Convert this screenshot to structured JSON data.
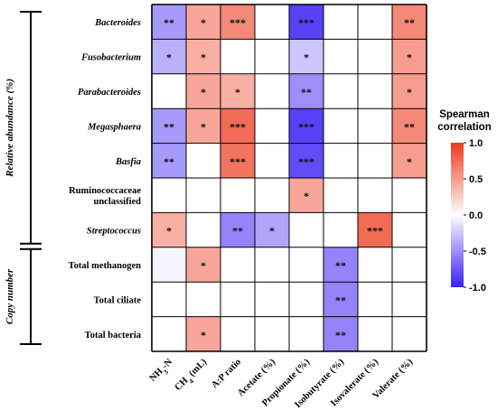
{
  "chart_data": {
    "type": "heatmap",
    "title": "",
    "rows": [
      {
        "label": "Bacteroides",
        "italic": true
      },
      {
        "label": "Fusobacterium",
        "italic": true
      },
      {
        "label": "Parabacteroides",
        "italic": true
      },
      {
        "label": "Megasphaera",
        "italic": true
      },
      {
        "label": "Basfia",
        "italic": true
      },
      {
        "label": "Ruminococcaceae unclassified",
        "label_lines": [
          "Ruminococcaceae",
          "unclassified"
        ],
        "italic": false
      },
      {
        "label": "Streptococcus",
        "italic": true
      },
      {
        "label": "Total methanogen",
        "italic": false
      },
      {
        "label": "Total ciliate",
        "italic": false
      },
      {
        "label": "Total bacteria",
        "italic": false
      }
    ],
    "columns": [
      {
        "label": "NH3-N",
        "main": "NH",
        "sub": "3",
        "tail": "-N"
      },
      {
        "label": "CH4 (mL)",
        "main": "CH",
        "sub": "4",
        "tail": " (mL)"
      },
      {
        "label": "A:P ratio",
        "main": "A:P ratio",
        "sub": "",
        "tail": ""
      },
      {
        "label": "Acetate (%)",
        "main": "Acetate (%)",
        "sub": "",
        "tail": ""
      },
      {
        "label": "Propionate (%)",
        "main": "Propionate (%)",
        "sub": "",
        "tail": ""
      },
      {
        "label": "Isobutyrate (%)",
        "main": "Isobutyrate (%)",
        "sub": "",
        "tail": ""
      },
      {
        "label": "Isovalerate (%)",
        "main": "Isovalerate (%)",
        "sub": "",
        "tail": ""
      },
      {
        "label": "Valerate (%)",
        "main": "Valerate (%)",
        "sub": "",
        "tail": ""
      }
    ],
    "values": [
      [
        -0.45,
        0.45,
        0.6,
        0,
        -0.85,
        0,
        0,
        0.6
      ],
      [
        -0.35,
        0.4,
        0,
        0,
        -0.25,
        0,
        0,
        0.5
      ],
      [
        0,
        0.45,
        0.4,
        0,
        -0.5,
        0,
        0,
        0.5
      ],
      [
        -0.45,
        0.45,
        0.75,
        0,
        -0.85,
        0,
        0,
        0.6
      ],
      [
        -0.45,
        0,
        0.7,
        0,
        -0.8,
        0,
        0,
        0.5
      ],
      [
        0,
        0,
        0,
        0,
        0.45,
        0,
        0,
        0
      ],
      [
        0.4,
        0,
        -0.55,
        -0.4,
        0,
        0,
        0.75,
        0
      ],
      [
        -0.05,
        0.45,
        0,
        0,
        0,
        -0.55,
        0,
        0
      ],
      [
        0,
        0,
        0,
        0,
        0,
        -0.55,
        0,
        0
      ],
      [
        0,
        0.45,
        0,
        0,
        0,
        -0.55,
        0,
        0
      ]
    ],
    "significance": [
      [
        "**",
        "*",
        "***",
        "",
        "***",
        "",
        "",
        "**"
      ],
      [
        "*",
        "*",
        "",
        "",
        "*",
        "",
        "",
        "*"
      ],
      [
        "",
        "*",
        "*",
        "",
        "**",
        "",
        "",
        "*"
      ],
      [
        "**",
        "*",
        "***",
        "",
        "***",
        "",
        "",
        "**"
      ],
      [
        "**",
        "",
        "***",
        "",
        "***",
        "",
        "",
        "*"
      ],
      [
        "",
        "",
        "",
        "",
        "*",
        "",
        "",
        ""
      ],
      [
        "*",
        "",
        "**",
        "*",
        "",
        "",
        "***",
        ""
      ],
      [
        "",
        "*",
        "",
        "",
        "",
        "**",
        "",
        ""
      ],
      [
        "",
        "",
        "",
        "",
        "",
        "**",
        "",
        ""
      ],
      [
        "",
        "*",
        "",
        "",
        "",
        "**",
        "",
        ""
      ]
    ],
    "row_groups": [
      {
        "label": "Relative abundance (%)",
        "row_start": 0,
        "row_end": 6
      },
      {
        "label": "Copy number",
        "row_start": 7,
        "row_end": 9
      }
    ],
    "legend": {
      "title_lines": [
        "Spearman",
        "correlation"
      ],
      "ticks": [
        1.0,
        0.5,
        0.0,
        -0.5,
        -1.0
      ],
      "tick_labels": [
        "1.0",
        "0.5",
        "0.0",
        "-0.5",
        "-1.0"
      ],
      "range": [
        -1.0,
        1.0
      ],
      "placement": "right",
      "color_negative": "#3a1ff5",
      "color_zero": "#ffffff",
      "color_positive": "#ee3a1c"
    }
  }
}
